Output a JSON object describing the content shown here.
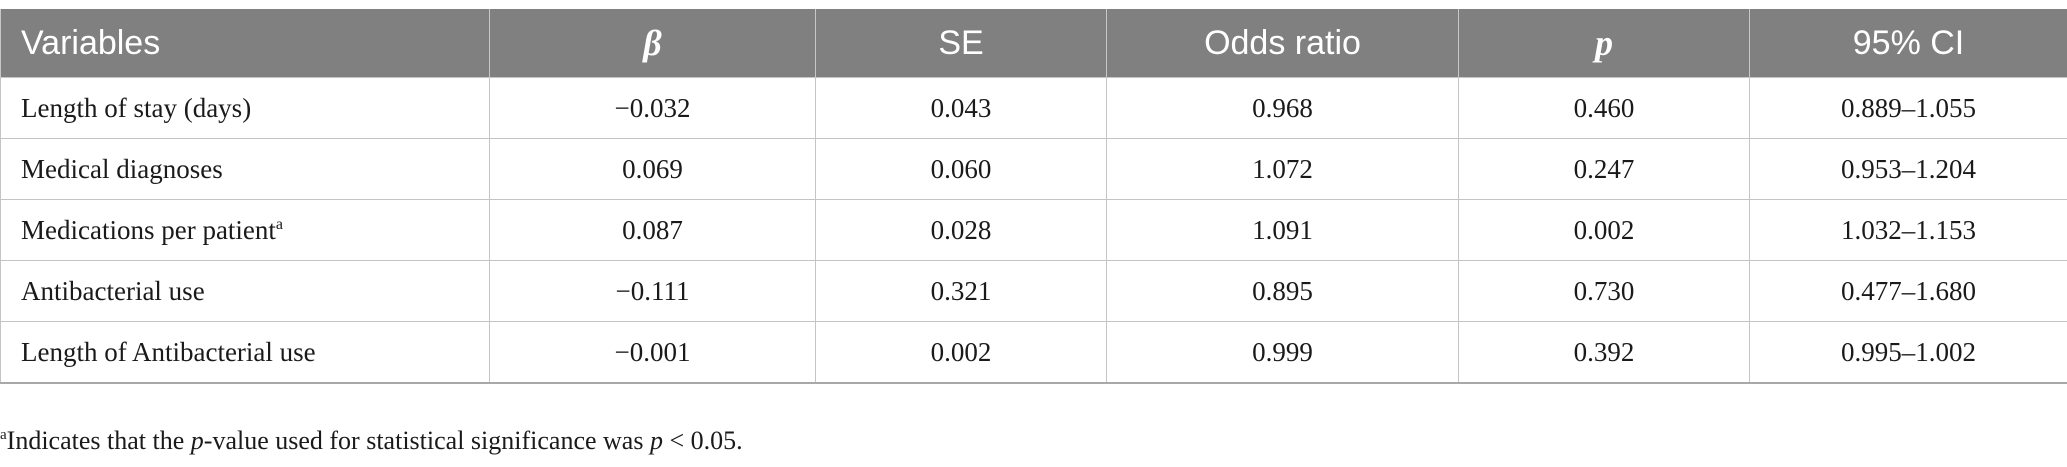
{
  "table": {
    "headers": [
      "Variables",
      "β",
      "SE",
      "Odds ratio",
      "p",
      "95% CI"
    ],
    "rows": [
      {
        "variable": "Length of stay (days)",
        "sup": "",
        "beta": "−0.032",
        "se": "0.043",
        "or": "0.968",
        "p": "0.460",
        "ci": "0.889–1.055"
      },
      {
        "variable": "Medical diagnoses",
        "sup": "",
        "beta": "0.069",
        "se": "0.060",
        "or": "1.072",
        "p": "0.247",
        "ci": "0.953–1.204"
      },
      {
        "variable": "Medications per patient",
        "sup": "a",
        "beta": "0.087",
        "se": "0.028",
        "or": "1.091",
        "p": "0.002",
        "ci": "1.032–1.153"
      },
      {
        "variable": "Antibacterial use",
        "sup": "",
        "beta": "−0.111",
        "se": "0.321",
        "or": "0.895",
        "p": "0.730",
        "ci": "0.477–1.680"
      },
      {
        "variable": "Length of Antibacterial use",
        "sup": "",
        "beta": "−0.001",
        "se": "0.002",
        "or": "0.999",
        "p": "0.392",
        "ci": "0.995–1.002"
      }
    ]
  },
  "footnote": {
    "marker": "a",
    "text_1": "Indicates that the ",
    "p_italic_1": "p",
    "text_2": "-value used for statistical significance was ",
    "p_italic_2": "p",
    "text_3": " < 0.05."
  }
}
